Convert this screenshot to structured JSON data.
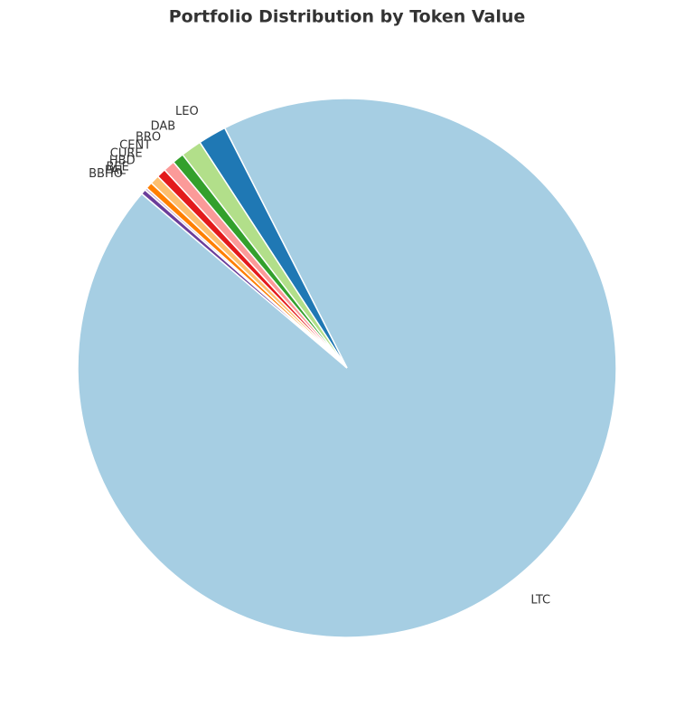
{
  "chart_data": {
    "type": "pie",
    "title": "Portfolio Distribution by Token Value",
    "categories": [
      "LTC",
      "LEO",
      "DAB",
      "BRO",
      "CENT",
      "CURE",
      "HBD",
      "BEE",
      "PAL",
      "BBHO"
    ],
    "values": [
      93.7,
      1.7,
      1.25,
      0.7,
      0.7,
      0.55,
      0.55,
      0.4,
      0.15,
      0.3
    ],
    "colors": [
      "#a6cee3",
      "#1f78b4",
      "#b2df8a",
      "#33a02c",
      "#fb9a99",
      "#e31a1c",
      "#fdbf6f",
      "#ff7f00",
      "#cab2d6",
      "#6a3d9a"
    ]
  }
}
